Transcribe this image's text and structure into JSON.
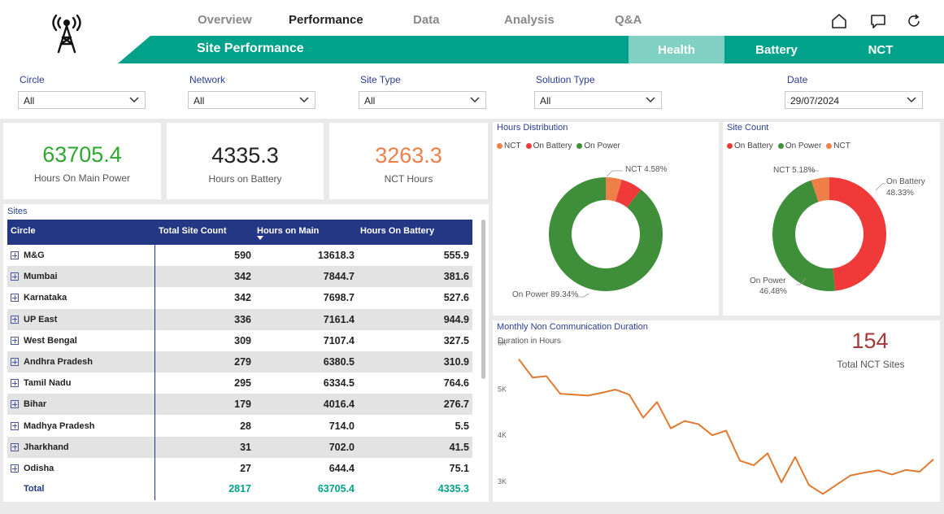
{
  "nav": {
    "items": [
      {
        "label": "Overview",
        "active": false
      },
      {
        "label": "Performance",
        "active": true
      },
      {
        "label": "Data",
        "active": false
      },
      {
        "label": "Analysis",
        "active": false
      },
      {
        "label": "Q&A",
        "active": false
      }
    ]
  },
  "icons": {
    "home": "home-icon",
    "comment": "comment-icon",
    "refresh": "refresh-icon",
    "logo": "tower-icon"
  },
  "colors": {
    "teal": "#00a389",
    "teal_light": "#80d1c4",
    "navy": "#233785",
    "green": "#3f8f3a",
    "red": "#f03a3a",
    "orange": "#ee7f48",
    "line": "#e07a30"
  },
  "banner": {
    "title": "Site Performance",
    "tabs": [
      {
        "label": "Health",
        "active": true
      },
      {
        "label": "Battery",
        "active": false
      },
      {
        "label": "NCT",
        "active": false
      }
    ]
  },
  "filters": [
    {
      "label": "Circle",
      "value": "All"
    },
    {
      "label": "Network",
      "value": "All"
    },
    {
      "label": "Site Type",
      "value": "All"
    },
    {
      "label": "Solution Type",
      "value": "All"
    },
    {
      "label": "Date",
      "value": "29/07/2024"
    }
  ],
  "kpis": [
    {
      "value": "63705.4",
      "label": "Hours On Main Power",
      "color": "#2ea82e"
    },
    {
      "value": "4335.3",
      "label": "Hours on Battery",
      "color": "#222222"
    },
    {
      "value": "3263.3",
      "label": "NCT Hours",
      "color": "#ee7f48"
    }
  ],
  "sites_table": {
    "title": "Sites",
    "columns": [
      "Circle",
      "Total Site Count",
      "Hours on Main",
      "Hours On Battery"
    ],
    "rows": [
      {
        "circle": "M&G",
        "count": "590",
        "main": "13618.3",
        "battery": "555.9"
      },
      {
        "circle": "Mumbai",
        "count": "342",
        "main": "7844.7",
        "battery": "381.6"
      },
      {
        "circle": "Karnataka",
        "count": "342",
        "main": "7698.7",
        "battery": "527.6"
      },
      {
        "circle": "UP East",
        "count": "336",
        "main": "7161.4",
        "battery": "944.9"
      },
      {
        "circle": "West Bengal",
        "count": "309",
        "main": "7107.4",
        "battery": "327.5"
      },
      {
        "circle": "Andhra Pradesh",
        "count": "279",
        "main": "6380.5",
        "battery": "310.9"
      },
      {
        "circle": "Tamil Nadu",
        "count": "295",
        "main": "6334.5",
        "battery": "764.6"
      },
      {
        "circle": "Bihar",
        "count": "179",
        "main": "4016.4",
        "battery": "276.7"
      },
      {
        "circle": "Madhya Pradesh",
        "count": "28",
        "main": "714.0",
        "battery": "5.5"
      },
      {
        "circle": "Jharkhand",
        "count": "31",
        "main": "702.0",
        "battery": "41.5"
      },
      {
        "circle": "Odisha",
        "count": "27",
        "main": "644.4",
        "battery": "75.1"
      }
    ],
    "total": {
      "label": "Total",
      "count": "2817",
      "main": "63705.4",
      "battery": "4335.3"
    }
  },
  "chart_data": [
    {
      "type": "pie",
      "title": "Hours Distribution",
      "legend": [
        "NCT",
        "On Battery",
        "On Power"
      ],
      "legend_placement": "top-left",
      "slices": [
        {
          "name": "NCT",
          "value": 4.58,
          "label": "NCT 4.58%",
          "color": "#ee7f48"
        },
        {
          "name": "On Battery",
          "value": 6.08,
          "label": "",
          "color": "#f03a3a"
        },
        {
          "name": "On Power",
          "value": 89.34,
          "label": "On Power 89.34%",
          "color": "#3f8f3a"
        }
      ]
    },
    {
      "type": "pie",
      "title": "Site Count",
      "legend": [
        "On Battery",
        "On Power",
        "NCT"
      ],
      "legend_placement": "top-left",
      "slices": [
        {
          "name": "On Battery",
          "value": 48.33,
          "label_line1": "On Battery",
          "label_line2": "48.33%",
          "color": "#f03a3a"
        },
        {
          "name": "On Power",
          "value": 46.48,
          "label_line1": "On Power",
          "label_line2": "46.48%",
          "color": "#3f8f3a"
        },
        {
          "name": "NCT",
          "value": 5.18,
          "label": "NCT 5.18%",
          "color": "#ee7f48"
        }
      ]
    },
    {
      "type": "line",
      "title": "Monthly Non Communication Duration",
      "ylabel": "Duration in Hours",
      "yticks": [
        "6K",
        "5K",
        "4K",
        "3K"
      ],
      "ylim": [
        2700,
        6100
      ],
      "grid": false,
      "values": [
        5650,
        5250,
        5280,
        4900,
        4880,
        4860,
        4920,
        4990,
        4880,
        4380,
        4720,
        4150,
        4310,
        4240,
        4000,
        4100,
        3450,
        3350,
        3610,
        2980,
        3530,
        2920,
        2730,
        2930,
        3130,
        3190,
        3240,
        3150,
        3250,
        3210,
        3480
      ]
    }
  ],
  "nct_sites": {
    "value": "154",
    "label": "Total NCT Sites"
  }
}
